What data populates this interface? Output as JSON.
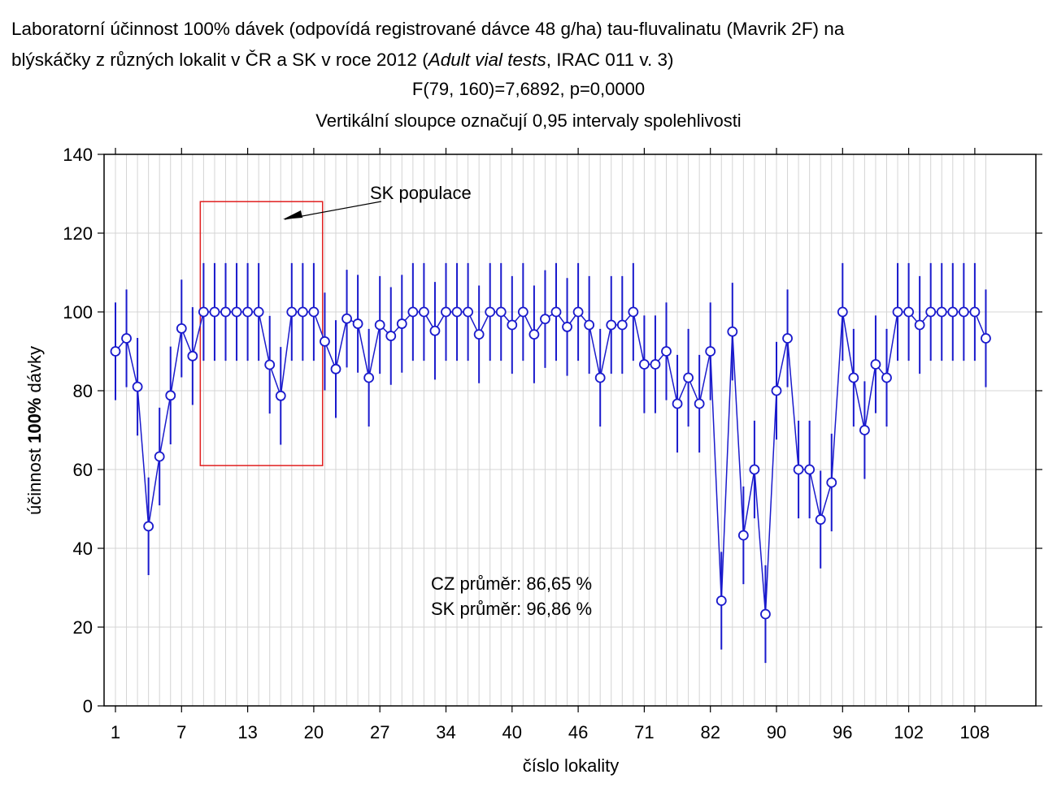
{
  "chart_data": {
    "type": "line",
    "title_line1": "Laboratorní účinnost 100% dávek (odpovídá registrované dávce 48 g/ha) tau-fluvalinatu (Mavrik 2F) na",
    "title_line2_pre": "blýskáčky z různých lokalit v ČR a SK v roce 2012 (",
    "title_line2_italic": "Adult vial tests",
    "title_line2_post": ", IRAC 011 v. 3)",
    "subtitle_stat": "F(79, 160)=7,6892, p=0,0000",
    "subtitle_ci": "Vertikální sloupce označují 0,95 intervaly spolehlivosti",
    "xlabel": "číslo lokality",
    "ylabel_pre": "účinnost ",
    "ylabel_bold": "100%",
    "ylabel_post": " dávky",
    "ylim": [
      0,
      140
    ],
    "y_ticks": [
      0,
      20,
      40,
      60,
      80,
      100,
      120,
      140
    ],
    "x_tick_labels": [
      "1",
      "7",
      "13",
      "20",
      "27",
      "34",
      "40",
      "46",
      "71",
      "82",
      "90",
      "96",
      "102",
      "108"
    ],
    "x_tick_indices": [
      0,
      6,
      12,
      18,
      24,
      30,
      36,
      42,
      48,
      54,
      60,
      66,
      72,
      78
    ],
    "n_points": 80,
    "grid": true,
    "error_half_width": 12.4,
    "values": [
      90,
      93.3,
      81,
      45.6,
      63.3,
      78.8,
      95.8,
      88.8,
      100,
      100,
      100,
      100,
      100,
      100,
      86.6,
      78.7,
      100,
      100,
      100,
      92.5,
      85.5,
      98.3,
      97,
      83.3,
      96.7,
      93.9,
      97,
      100,
      100,
      95.2,
      100,
      100,
      100,
      94.3,
      100,
      100,
      96.7,
      100,
      94.3,
      98.2,
      100,
      96.2,
      100,
      96.7,
      83.3,
      96.7,
      96.7,
      100,
      86.7,
      86.7,
      90,
      76.7,
      83.3,
      76.7,
      90,
      26.7,
      95,
      43.3,
      60,
      23.3,
      80,
      93.3,
      60,
      60,
      47.3,
      56.7,
      100,
      83.3,
      70,
      86.7,
      83.3,
      100,
      100,
      96.7,
      100,
      100,
      100,
      100,
      100,
      93.3
    ],
    "series_color": "#1a1acc",
    "highlight_label": "SK populace",
    "highlight_color": "#e02020",
    "highlight_range": {
      "x_from_index": 7.7,
      "x_to_index": 18.8,
      "y_from": 61,
      "y_to": 128
    },
    "annotation_cz": "CZ průměr: 86,65 %",
    "annotation_sk": "SK průměr: 96,86 %"
  }
}
